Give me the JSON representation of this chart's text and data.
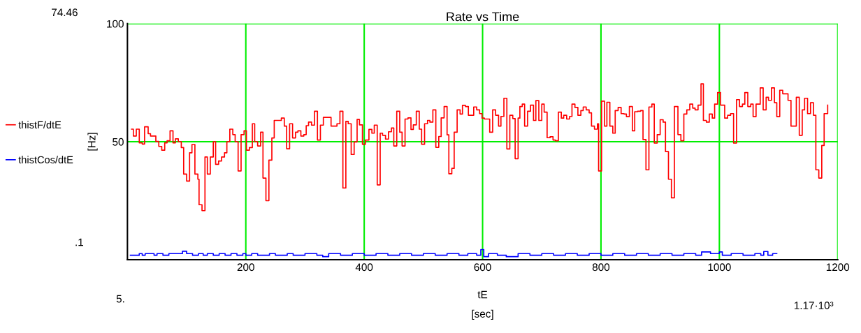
{
  "chart_data": {
    "type": "step",
    "title": "Rate vs Time",
    "xlabel": "tE\n[sec]",
    "ylabel": "[Hz]",
    "xlim": [
      0,
      1200
    ],
    "ylim": [
      0,
      100
    ],
    "xticks": [
      200,
      400,
      600,
      800,
      1000,
      1200
    ],
    "yticks": [
      50,
      100
    ],
    "grid": true,
    "legend": "left",
    "annotations": [
      "74.46",
      ".1",
      "5.",
      "1.17·10³"
    ],
    "series": [
      {
        "name": "thistF/dtE",
        "color": "#ff0000",
        "x": [
          7,
          10,
          15,
          20,
          25,
          29,
          35,
          39,
          48,
          53,
          58,
          63,
          67,
          72,
          77,
          81,
          86,
          91,
          95,
          100,
          105,
          109,
          114,
          119,
          121,
          126,
          131,
          135,
          140,
          145,
          149,
          154,
          159,
          164,
          168,
          173,
          178,
          182,
          187,
          192,
          197,
          201,
          206,
          211,
          215,
          220,
          225,
          229,
          234,
          239,
          244,
          248,
          260,
          265,
          269,
          274,
          279,
          284,
          288,
          293,
          298,
          302,
          306,
          311,
          316,
          321,
          326,
          331,
          344,
          354,
          359,
          364,
          369,
          373,
          378,
          383,
          388,
          392,
          397,
          402,
          408,
          413,
          417,
          422,
          427,
          431,
          436,
          441,
          446,
          450,
          455,
          460,
          464,
          469,
          474,
          479,
          483,
          488,
          493,
          497,
          502,
          507,
          511,
          516,
          521,
          526,
          530,
          535,
          540,
          543,
          548,
          552,
          557,
          562,
          566,
          571,
          576,
          585,
          590,
          595,
          599,
          603,
          612,
          617,
          622,
          627,
          631,
          636,
          641,
          646,
          651,
          655,
          660,
          663,
          667,
          671,
          676,
          681,
          686,
          690,
          695,
          700,
          704,
          709,
          714,
          719,
          723,
          728,
          733,
          737,
          742,
          747,
          751,
          756,
          761,
          766,
          770,
          775,
          780,
          784,
          789,
          794,
          796,
          801,
          806,
          810,
          815,
          820,
          824,
          829,
          834,
          839,
          843,
          848,
          853,
          857,
          862,
          867,
          871,
          876,
          881,
          886,
          890,
          895,
          900,
          905,
          909,
          914,
          919,
          924,
          930,
          935,
          940,
          945,
          950,
          955,
          959,
          964,
          969,
          973,
          978,
          983,
          988,
          992,
          997,
          1002,
          1009,
          1014,
          1019,
          1024,
          1029,
          1034,
          1039,
          1043,
          1048,
          1053,
          1057,
          1062,
          1069,
          1074,
          1079,
          1083,
          1088,
          1093,
          1097,
          1102,
          1107,
          1116,
          1121,
          1130,
          1135,
          1140,
          1144,
          1149,
          1154,
          1159,
          1163,
          1168,
          1173,
          1177,
          1183
        ],
        "values": [
          55.3,
          52.4,
          55.3,
          49.5,
          49,
          56.3,
          53.4,
          52.4,
          50.1,
          48,
          46.4,
          49.5,
          50.4,
          54.6,
          49.5,
          51.2,
          50,
          47.5,
          36.3,
          33.3,
          45.3,
          48.8,
          36.3,
          34.1,
          23.3,
          20.8,
          43.5,
          36.3,
          43.5,
          50,
          40.4,
          41.8,
          43.5,
          45.3,
          50,
          55.3,
          53,
          50,
          37.6,
          53,
          54.6,
          46.4,
          47.5,
          57.6,
          50,
          48.2,
          54,
          34.6,
          25,
          42.2,
          51.6,
          59,
          60,
          56.6,
          47,
          57.6,
          51.6,
          54,
          54.6,
          52.4,
          53,
          56.8,
          58.3,
          57,
          62.9,
          50.7,
          57,
          60.3,
          56.6,
          57.6,
          62.9,
          30.4,
          58.6,
          57.6,
          44.6,
          49.9,
          59.4,
          57.1,
          48.9,
          50.7,
          55.2,
          53.6,
          57,
          31.7,
          53.6,
          52.7,
          51.1,
          54.2,
          55.8,
          48.2,
          62.9,
          54,
          48.2,
          59.6,
          60.1,
          55.2,
          57.1,
          62.9,
          55.3,
          48.9,
          57.6,
          59,
          58.3,
          63.5,
          47.6,
          52.2,
          60.1,
          64.9,
          52.9,
          36.4,
          38.7,
          54,
          63.5,
          61.7,
          65.4,
          64.9,
          61.2,
          64.7,
          63.5,
          61.9,
          60,
          59.6,
          54,
          63.5,
          61.2,
          56.6,
          60.7,
          68.4,
          46.9,
          61.2,
          59.8,
          42.8,
          60,
          64.9,
          65.9,
          56.6,
          62.9,
          65.5,
          59,
          67.4,
          59,
          65.9,
          62.5,
          51.7,
          52.1,
          50.7,
          50.4,
          62.5,
          60,
          61.2,
          59.6,
          60.7,
          65.9,
          64.5,
          61.2,
          63.2,
          64.7,
          63.5,
          62.2,
          56.6,
          55.3,
          57.6,
          37.6,
          67.2,
          56.6,
          66.7,
          56.6,
          53.6,
          63.2,
          64.5,
          61.9,
          61.7,
          60.6,
          64.9,
          54.6,
          62.7,
          62.9,
          63.2,
          50.9,
          38.1,
          64.7,
          65.9,
          49.4,
          53,
          59.3,
          58.3,
          45.8,
          34.1,
          26.2,
          64.9,
          53,
          50.4,
          61.7,
          63.5,
          65.9,
          64.2,
          63.5,
          65.5,
          74.5,
          59,
          58.3,
          61.7,
          60,
          65.9,
          70.8,
          65.5,
          60,
          61.2,
          61.9,
          49.4,
          67.8,
          64.9,
          65.9,
          70.8,
          64.9,
          65.9,
          60.6,
          65.9,
          72.8,
          63.5,
          68.8,
          67.5,
          72.8,
          66.5,
          60.6,
          71.8,
          70.3,
          67.5,
          56.6,
          68.8,
          52.7,
          63.5,
          68.4,
          61.9,
          66.5,
          61.2,
          38.1,
          34.6,
          48.4,
          61.9,
          65.5
        ]
      },
      {
        "name": "thistCos/dtE",
        "color": "#0000ff",
        "x": [
          5,
          20,
          25,
          30,
          45,
          50,
          60,
          70,
          85,
          93,
          100,
          110,
          120,
          128,
          135,
          145,
          155,
          165,
          175,
          185,
          195,
          200,
          210,
          220,
          240,
          250,
          270,
          280,
          300,
          320,
          330,
          340,
          360,
          380,
          400,
          420,
          440,
          460,
          480,
          500,
          520,
          540,
          560,
          575,
          590,
          597,
          602,
          610,
          625,
          640,
          660,
          680,
          700,
          720,
          740,
          760,
          780,
          800,
          820,
          840,
          860,
          880,
          900,
          920,
          940,
          960,
          970,
          985,
          1000,
          1005,
          1020,
          1040,
          1060,
          1070,
          1075,
          1082,
          1090,
          1097
        ],
        "values": [
          1.9,
          2.6,
          1.9,
          2.6,
          1.9,
          2.6,
          1.9,
          2.6,
          2.6,
          3.6,
          2.6,
          1.9,
          2.6,
          1.9,
          2.6,
          1.9,
          2.6,
          1.9,
          2.6,
          1.9,
          2.6,
          1.9,
          2.6,
          1.9,
          2.6,
          1.9,
          2.6,
          1.9,
          2.6,
          1.9,
          1.3,
          2.6,
          1.9,
          2.6,
          1.9,
          2.6,
          1.9,
          2.6,
          1.9,
          2.6,
          1.9,
          2.6,
          1.9,
          2.6,
          1.9,
          4.3,
          1.3,
          2.6,
          1.9,
          1.3,
          2.6,
          1.9,
          2.6,
          1.9,
          2.6,
          1.9,
          2.6,
          1.9,
          2.6,
          1.9,
          2.6,
          1.9,
          2.6,
          1.9,
          2.6,
          1.9,
          3.3,
          2.6,
          3.3,
          1.9,
          2.6,
          1.9,
          2.6,
          1.9,
          3.5,
          1.9,
          2.6,
          2.6
        ]
      }
    ]
  }
}
